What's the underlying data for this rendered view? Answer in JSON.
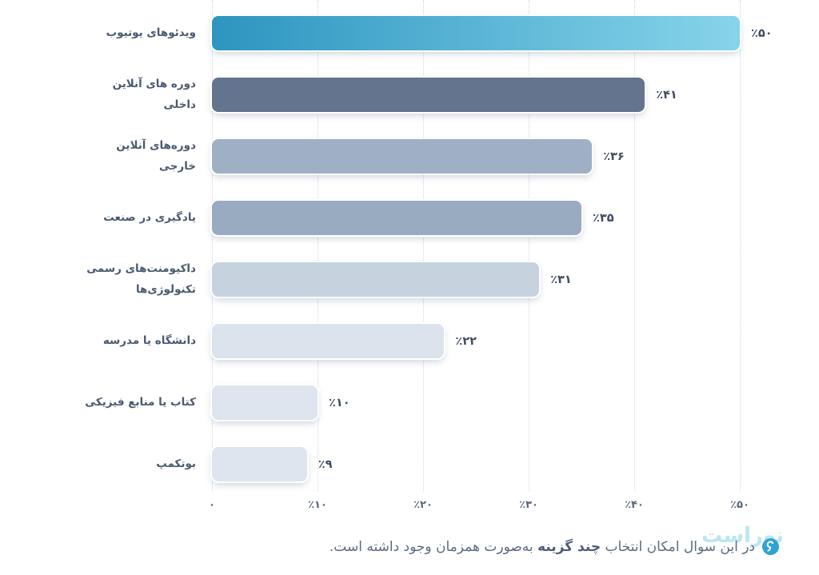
{
  "chart_data": {
    "type": "bar",
    "orientation": "horizontal",
    "title": "",
    "xlabel": "",
    "ylabel": "",
    "xlim": [
      0,
      50
    ],
    "grid": "vertical-dotted",
    "legend": "none",
    "categories": [
      "ویدئوهای یوتیوب",
      "دوره های آنلاین داخلی",
      "دوره‌های آنلاین خارجی",
      "یادگیری در صنعت",
      "داکیومنت‌های رسمی تکنولوژی‌ها",
      "دانشگاه یا مدرسه",
      "کتاب یا منابع فیزیکی",
      "بوتکمپ"
    ],
    "values": [
      50,
      41,
      36,
      35,
      31,
      22,
      10,
      9
    ],
    "bars": [
      {
        "label": "ویدئوهای یوتیوب",
        "value": 50,
        "display": "٪۵۰",
        "gradient": [
          "#2d95c0",
          "#87d4ea"
        ]
      },
      {
        "label": "دوره های آنلاین داخلی",
        "value": 41,
        "display": "٪۴۱",
        "color": "#64748f"
      },
      {
        "label": "دوره‌های آنلاین خارجی",
        "value": 36,
        "display": "٪۳۶",
        "color": "#9fb0c5"
      },
      {
        "label": "یادگیری در صنعت",
        "value": 35,
        "display": "٪۳۵",
        "color": "#99abc0"
      },
      {
        "label": "داکیومنت‌های رسمی تکنولوژی‌ها",
        "value": 31,
        "display": "٪۳۱",
        "color": "#c7d2df"
      },
      {
        "label": "دانشگاه یا مدرسه",
        "value": 22,
        "display": "٪۲۲",
        "color": "#dbe3ed"
      },
      {
        "label": "کتاب یا منابع فیزیکی",
        "value": 10,
        "display": "٪۱۰",
        "color": "#dee5ef"
      },
      {
        "label": "بوتکمپ",
        "value": 9,
        "display": "٪۹",
        "color": "#dee5ef"
      }
    ],
    "x_ticks": [
      {
        "value": 0,
        "label": "۰"
      },
      {
        "value": 10,
        "label": "٪۱۰"
      },
      {
        "value": 20,
        "label": "٪۲۰"
      },
      {
        "value": 30,
        "label": "٪۳۰"
      },
      {
        "value": 40,
        "label": "٪۴۰"
      },
      {
        "value": 50,
        "label": "٪۵۰"
      }
    ]
  },
  "caption": {
    "prefix": "در این سوال امکان انتخاب ",
    "bold": "چند گزینه",
    "suffix": " به‌صورت همزمان وجود داشته است.",
    "text_color": "#5b6b84",
    "bullet_color": "#2fa3d4"
  },
  "watermark": {
    "text": "نوراست",
    "color": "#5fc2de"
  }
}
